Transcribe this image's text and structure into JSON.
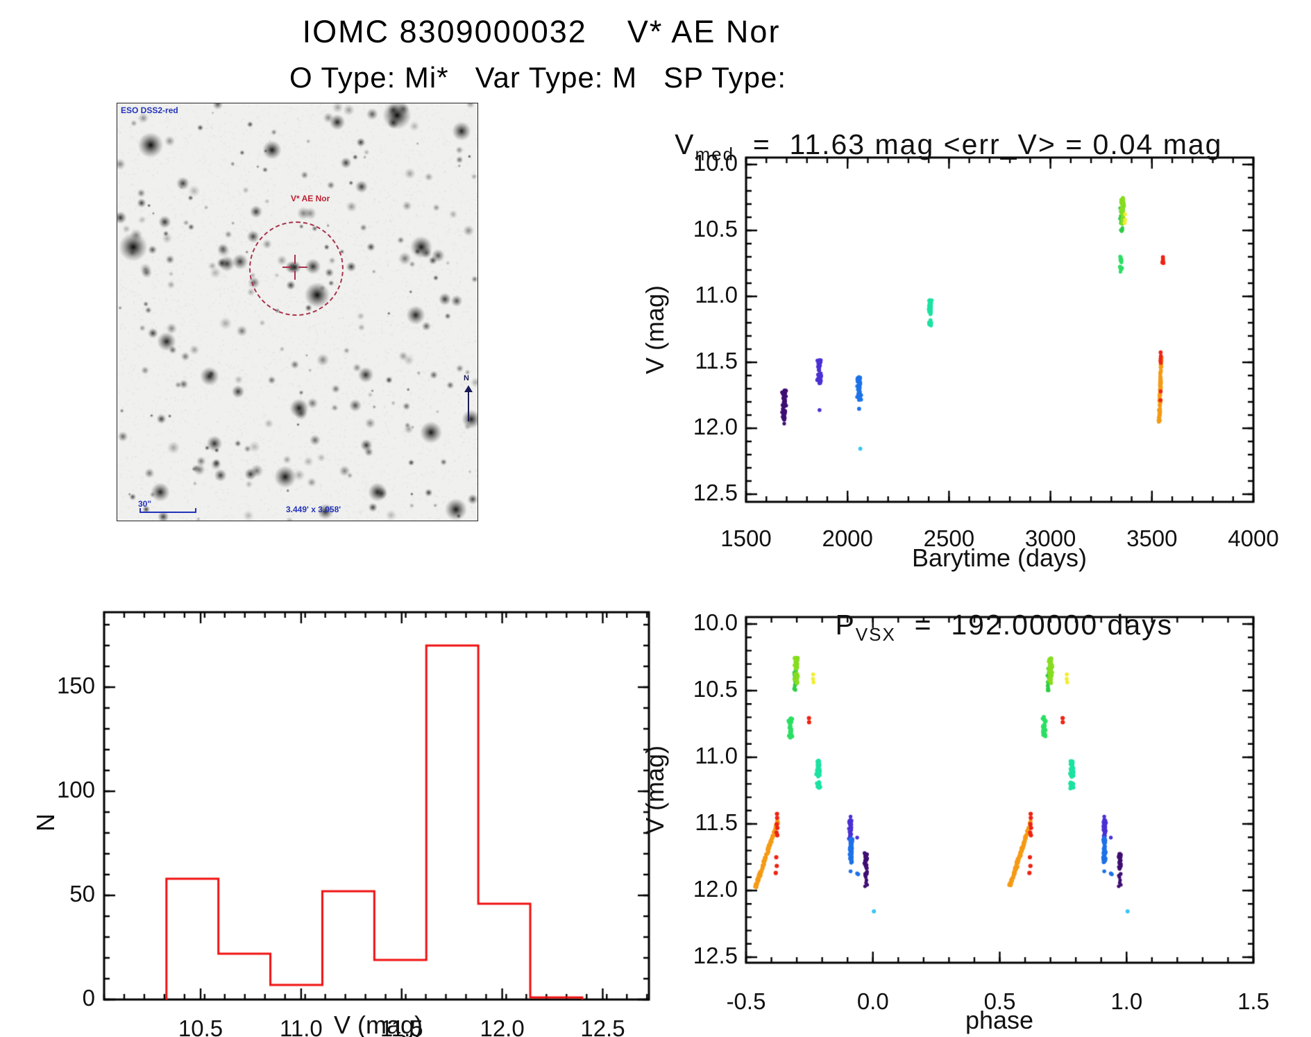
{
  "header": {
    "title": "IOMC 8309000032    V* AE Nor",
    "subtitle": "O Type: Mi*   Var Type: M   SP Type:"
  },
  "finder": {
    "survey": "ESO DSS2-red",
    "target": "V* AE Nor",
    "scale_bar": "30\"",
    "field_size": "3.449' x 3.058'",
    "north": "N"
  },
  "chart_data": [
    {
      "id": "v_vs_barytime",
      "type": "scatter",
      "title": {
        "base": "V",
        "sub": "med",
        "rest": "  =  11.63 mag <err_V> = 0.04 mag"
      },
      "xlabel": "Barytime (days)",
      "ylabel": "V (mag)",
      "xlim": [
        1500,
        4000
      ],
      "ylim": [
        12.5,
        10.0
      ],
      "xticks": [
        1500,
        2000,
        2500,
        3000,
        3500,
        4000
      ],
      "yticks": [
        10.0,
        10.5,
        11.0,
        11.5,
        12.0,
        12.5
      ],
      "x_minor_step": 100,
      "y_minor_step": 0.1,
      "grid": false,
      "clusters": [
        {
          "color": "#3f0e72",
          "x": 1688,
          "w": 4.5,
          "r": 2.7,
          "segments": [
            {
              "v": [
                11.705,
                11.835
              ],
              "n": 48
            },
            {
              "v": [
                11.855,
                11.945
              ],
              "n": 24
            }
          ]
        },
        {
          "color": "#4a31d4",
          "x": 1862,
          "w": 4.5,
          "r": 2.7,
          "segments": [
            {
              "v": [
                11.485,
                11.66
              ],
              "n": 55
            }
          ]
        },
        {
          "color": "#1c72e8",
          "x": 2057,
          "w": 4.5,
          "r": 2.7,
          "segments": [
            {
              "v": [
                11.598,
                11.785
              ],
              "n": 55
            }
          ]
        },
        {
          "color": "#1ce2a2",
          "x": 2407,
          "w": 4.0,
          "r": 2.7,
          "segments": [
            {
              "v": [
                11.02,
                11.135
              ],
              "n": 40
            },
            {
              "v": [
                11.175,
                11.232
              ],
              "n": 10
            }
          ]
        },
        {
          "color": "#2ecc47",
          "x": 3350,
          "w": 3.5,
          "r": 2.5,
          "segments": [
            {
              "v": [
                10.33,
                10.5
              ],
              "n": 26
            }
          ]
        },
        {
          "color": "#86dd1f",
          "x": 3356,
          "w": 4.0,
          "r": 2.7,
          "segments": [
            {
              "v": [
                10.252,
                10.45
              ],
              "n": 48
            }
          ]
        },
        {
          "color": "#2bdf63",
          "x": 3346,
          "w": 3.5,
          "r": 2.5,
          "segments": [
            {
              "v": [
                10.695,
                10.818
              ],
              "n": 28
            }
          ]
        },
        {
          "color": "#ee2414",
          "x": 3552,
          "w": 2.5,
          "r": 2.9,
          "segments": [
            {
              "v": [
                10.695,
                10.745
              ],
              "n": 6
            }
          ]
        }
      ],
      "trails": [
        {
          "color": "#f59a15",
          "from": [
            3536,
            11.955
          ],
          "to": [
            3546,
            11.46
          ],
          "n": 95,
          "jx": 6,
          "jv": 0.012,
          "r": 2.7
        }
      ],
      "dots": [
        {
          "color": "#3f0e72",
          "r": 2.6,
          "points": [
            [
              1688,
              11.965
            ]
          ]
        },
        {
          "color": "#4a31d4",
          "r": 2.8,
          "points": [
            [
              1862,
              11.862
            ]
          ]
        },
        {
          "color": "#1c72e8",
          "r": 2.9,
          "points": [
            [
              2057,
              11.852
            ]
          ]
        },
        {
          "color": "#38c6f2",
          "r": 2.9,
          "points": [
            [
              2063,
              12.155
            ]
          ]
        },
        {
          "color": "#2ecc47",
          "r": 2.5,
          "points": [
            [
              3351,
              10.507
            ]
          ]
        },
        {
          "color": "#f0ee33",
          "r": 2.8,
          "points": [
            [
              3368,
              10.378
            ],
            [
              3368,
              10.42
            ],
            [
              3366,
              10.443
            ]
          ]
        },
        {
          "color": "#ee2414",
          "r": 2.9,
          "points": [
            [
              3543,
              11.425
            ],
            [
              3544,
              11.452
            ],
            [
              3543,
              11.472
            ],
            [
              3542,
              11.49
            ],
            [
              3544,
              11.503
            ],
            [
              3543,
              11.72
            ],
            [
              3542,
              11.787
            ]
          ]
        }
      ]
    },
    {
      "id": "v_histogram",
      "type": "histogram",
      "xlabel": "V (mag)",
      "ylabel": "N",
      "bin_start": 10.33,
      "bin_width": 0.2585,
      "counts": [
        58,
        22,
        7,
        52,
        19,
        170,
        46,
        1
      ],
      "xticks": [
        10.5,
        11.0,
        11.5,
        12.0,
        12.5
      ],
      "yticks": [
        0,
        50,
        100,
        150
      ],
      "xlim": [
        10.02,
        12.73
      ],
      "ylim": [
        0,
        186
      ],
      "x_minor_step": 0.1,
      "y_minor_step": 10,
      "grid": false,
      "color": "#f01010"
    },
    {
      "id": "v_vs_phase",
      "type": "scatter",
      "title": {
        "base": "P",
        "sub": "VSX",
        "rest": "  =  192.00000 days"
      },
      "xlabel": "phase",
      "ylabel": "V (mag)",
      "xlim": [
        -0.5,
        1.5
      ],
      "ylim": [
        12.5,
        10.0
      ],
      "xticks": [
        -0.5,
        0.0,
        0.5,
        1.0,
        1.5
      ],
      "yticks": [
        10.0,
        10.5,
        11.0,
        11.5,
        12.0,
        12.5
      ],
      "x_minor_step": 0.1,
      "y_minor_step": 0.1,
      "grid": false,
      "duplicate_offset": 1.0,
      "clusters": [
        {
          "color": "#2bdf63",
          "x": -0.325,
          "w": 4.0,
          "r": 2.9,
          "segments": [
            {
              "v": [
                10.7,
                10.85
              ],
              "n": 30
            }
          ]
        },
        {
          "color": "#2ecc47",
          "x": -0.307,
          "w": 3.0,
          "r": 2.7,
          "segments": [
            {
              "v": [
                10.33,
                10.5
              ],
              "n": 22
            }
          ]
        },
        {
          "color": "#86dd1f",
          "x": -0.301,
          "w": 4.0,
          "r": 2.9,
          "segments": [
            {
              "v": [
                10.255,
                10.445
              ],
              "n": 45
            }
          ]
        },
        {
          "color": "#1ce2a2",
          "x": -0.215,
          "w": 4.0,
          "r": 2.9,
          "segments": [
            {
              "v": [
                11.02,
                11.145
              ],
              "n": 40
            },
            {
              "v": [
                11.18,
                11.232
              ],
              "n": 10
            }
          ]
        },
        {
          "color": "#4a31d4",
          "x": -0.088,
          "w": 3.5,
          "r": 2.8,
          "segments": [
            {
              "v": [
                11.46,
                11.632
              ],
              "n": 40
            }
          ]
        },
        {
          "color": "#1c72e8",
          "x": -0.0865,
          "w": 3.5,
          "r": 2.8,
          "segments": [
            {
              "v": [
                11.598,
                11.79
              ],
              "n": 48
            }
          ]
        },
        {
          "color": "#3f0e72",
          "x": -0.027,
          "w": 3.5,
          "r": 2.8,
          "segments": [
            {
              "v": [
                11.72,
                11.878
              ],
              "n": 30
            }
          ]
        }
      ],
      "trails": [
        {
          "color": "#f59a15",
          "from": [
            -0.462,
            11.975
          ],
          "to": [
            -0.376,
            11.48
          ],
          "n": 120,
          "jx": 0.006,
          "jv": 0.014,
          "r": 2.8
        }
      ],
      "dots": [
        {
          "color": "#ee2414",
          "r": 3.1,
          "points": [
            [
              -0.378,
              11.425
            ],
            [
              -0.3775,
              11.455
            ],
            [
              -0.379,
              11.502
            ],
            [
              -0.3765,
              11.53
            ],
            [
              -0.38,
              11.565
            ],
            [
              -0.377,
              11.585
            ],
            [
              -0.381,
              11.75
            ],
            [
              -0.379,
              11.815
            ],
            [
              -0.383,
              11.868
            ]
          ]
        },
        {
          "color": "#ee2414",
          "r": 3.1,
          "points": [
            [
              -0.252,
              10.706
            ],
            [
              -0.2515,
              10.737
            ]
          ]
        },
        {
          "color": "#f0ee33",
          "r": 2.9,
          "points": [
            [
              -0.2355,
              10.378
            ],
            [
              -0.236,
              10.412
            ],
            [
              -0.234,
              10.437
            ]
          ]
        },
        {
          "color": "#4a31d4",
          "r": 2.7,
          "points": [
            [
              -0.088,
              11.445
            ],
            [
              -0.062,
              11.603
            ]
          ]
        },
        {
          "color": "#1c72e8",
          "r": 2.8,
          "points": [
            [
              -0.088,
              11.856
            ],
            [
              -0.062,
              11.872
            ],
            [
              -0.058,
              11.878
            ]
          ]
        },
        {
          "color": "#3f0e72",
          "r": 2.6,
          "points": [
            [
              -0.028,
              11.9
            ],
            [
              -0.0255,
              11.922
            ],
            [
              -0.0305,
              11.887
            ],
            [
              -0.0225,
              11.957
            ],
            [
              -0.027,
              11.942
            ],
            [
              -0.031,
              11.968
            ]
          ]
        },
        {
          "color": "#38c6f2",
          "r": 3.0,
          "points": [
            [
              0.004,
              12.156
            ]
          ]
        }
      ]
    }
  ]
}
